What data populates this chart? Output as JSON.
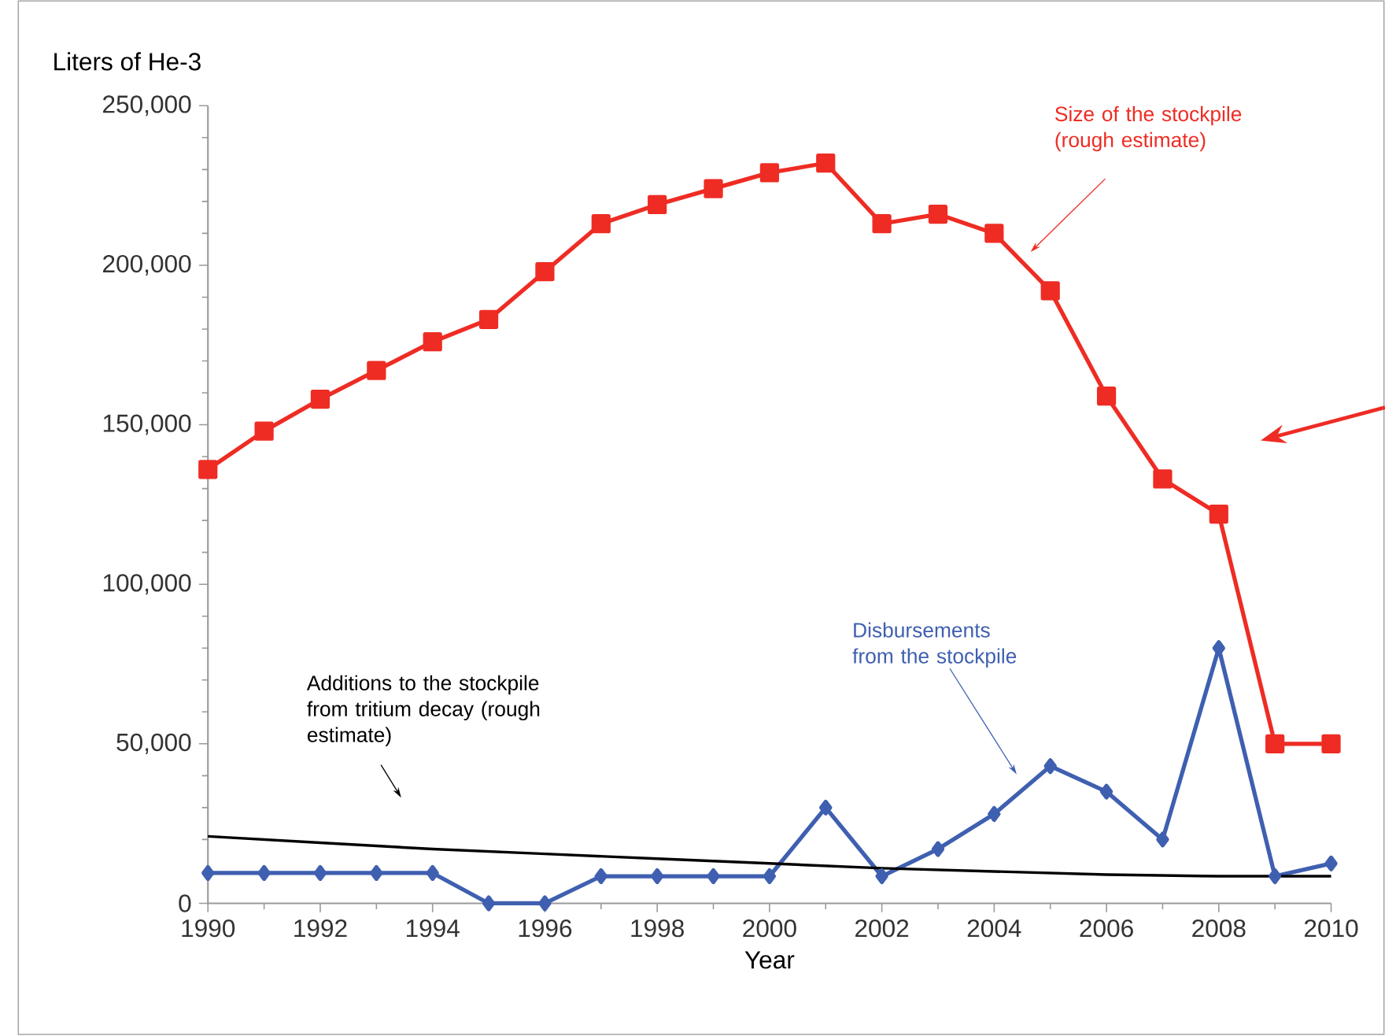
{
  "chart_data": {
    "type": "line",
    "ylabel": "Liters of He-3",
    "xlabel": "Year",
    "x": [
      1990,
      1991,
      1992,
      1993,
      1994,
      1995,
      1996,
      1997,
      1998,
      1999,
      2000,
      2001,
      2002,
      2003,
      2004,
      2005,
      2006,
      2007,
      2008,
      2009,
      2010
    ],
    "series": [
      {
        "color": "#ee2c24",
        "marker": "square",
        "values": [
          136000,
          148000,
          158000,
          167000,
          176000,
          183000,
          198000,
          213000,
          219000,
          224000,
          229000,
          232000,
          213000,
          216000,
          210000,
          192000,
          159000,
          133000,
          122000,
          50000,
          50000
        ]
      },
      {
        "color": "#3f5fb0",
        "marker": "diamond",
        "values": [
          9500,
          9500,
          9500,
          9500,
          9500,
          0,
          0,
          8500,
          8500,
          8500,
          8500,
          30000,
          8500,
          17000,
          28000,
          43000,
          35000,
          20000,
          80000,
          8500,
          12500
        ]
      },
      {
        "color": "#000000",
        "marker": "none",
        "x": [
          1990,
          1992,
          1994,
          1996,
          1998,
          2000,
          2002,
          2004,
          2006,
          2008,
          2010
        ],
        "values": [
          21000,
          19000,
          17000,
          15500,
          14000,
          12500,
          11000,
          10000,
          9000,
          8500,
          8500
        ]
      }
    ],
    "annotations": [
      "Size of the stockpile (rough estimate)",
      "Disbursements from the stockpile",
      "Additions to the stockpile from tritium decay (rough estimate)"
    ],
    "xlim": [
      1990,
      2010
    ],
    "xticks": [
      1990,
      1992,
      1994,
      1996,
      1998,
      2000,
      2002,
      2004,
      2006,
      2008,
      2010
    ],
    "ylim": [
      0,
      250000
    ],
    "yticks": [
      0,
      {
        "value": 50000,
        "label": "50,000"
      },
      {
        "value": 100000,
        "label": "100,000"
      },
      {
        "value": 150000,
        "label": "150,000"
      },
      {
        "value": 200000,
        "label": "200,000"
      },
      {
        "value": 250000,
        "label": "250,000"
      }
    ],
    "grid": false,
    "line_style": "solid"
  }
}
